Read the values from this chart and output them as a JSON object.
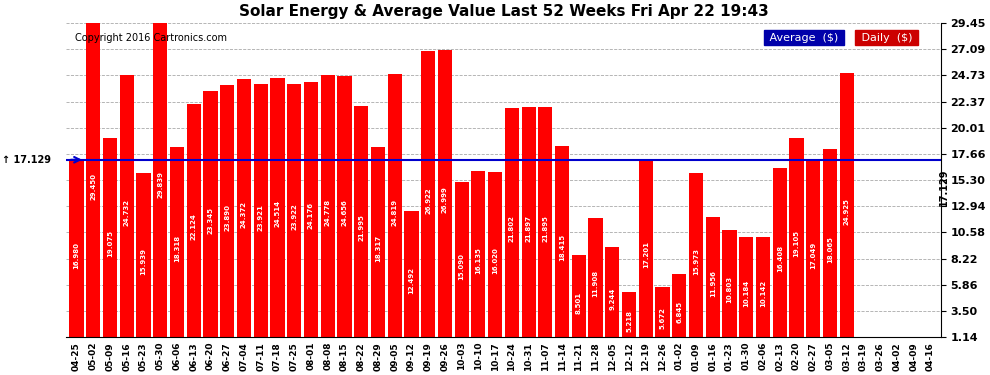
{
  "title": "Solar Energy & Average Value Last 52 Weeks Fri Apr 22 19:43",
  "copyright": "Copyright 2016 Cartronics.com",
  "average_value": 17.129,
  "bar_color": "#FF0000",
  "average_line_color": "#0000CC",
  "background_color": "#FFFFFF",
  "plot_bg_color": "#FFFFFF",
  "grid_color": "#AAAAAA",
  "ylim": [
    1.14,
    29.45
  ],
  "yticks": [
    1.14,
    3.5,
    5.86,
    8.22,
    10.58,
    12.94,
    15.3,
    17.66,
    20.01,
    22.37,
    24.73,
    27.09,
    29.45
  ],
  "legend_avg_color": "#0000AA",
  "legend_daily_color": "#CC0000",
  "categories": [
    "04-25",
    "05-02",
    "05-09",
    "05-16",
    "05-23",
    "05-30",
    "06-06",
    "06-13",
    "06-20",
    "06-27",
    "07-04",
    "07-11",
    "07-18",
    "07-25",
    "08-01",
    "08-08",
    "08-15",
    "08-22",
    "08-29",
    "09-05",
    "09-12",
    "09-19",
    "09-26",
    "10-03",
    "10-10",
    "10-17",
    "10-24",
    "10-31",
    "11-07",
    "11-14",
    "11-21",
    "11-28",
    "12-05",
    "12-12",
    "12-19",
    "12-26",
    "01-02",
    "01-09",
    "01-16",
    "01-23",
    "01-30",
    "02-06",
    "02-13",
    "02-20",
    "02-27",
    "03-05",
    "03-12",
    "03-19",
    "03-26",
    "04-02",
    "04-09",
    "04-16"
  ],
  "values": [
    16.98,
    29.45,
    19.075,
    24.732,
    15.939,
    29.839,
    18.318,
    22.124,
    23.345,
    23.89,
    24.372,
    23.921,
    24.514,
    23.922,
    24.176,
    24.778,
    24.656,
    21.995,
    18.317,
    24.819,
    12.492,
    26.922,
    26.999,
    15.09,
    16.135,
    16.02,
    21.802,
    21.897,
    21.895,
    18.415,
    8.501,
    11.908,
    9.244,
    5.218,
    17.2014,
    5.6718,
    6.845,
    15.973,
    11.956,
    10.803,
    10.184,
    10.142,
    16.408,
    19.105,
    17.049,
    18.065,
    24.925
  ],
  "values_full": [
    16.98,
    29.45,
    19.075,
    24.732,
    15.939,
    29.839,
    18.318,
    22.124,
    23.345,
    23.89,
    24.372,
    23.921,
    24.514,
    23.922,
    24.176,
    24.778,
    24.656,
    21.995,
    18.317,
    24.819,
    12.492,
    26.922,
    26.999,
    15.09,
    16.135,
    16.02,
    21.802,
    21.897,
    21.895,
    18.415,
    8.501,
    11.908,
    9.244,
    5.218,
    17.201,
    5.672,
    6.845,
    15.973,
    11.956,
    10.803,
    10.184,
    10.142,
    16.408,
    19.105,
    17.049,
    18.065,
    24.925,
    0,
    0,
    0,
    0,
    0
  ]
}
